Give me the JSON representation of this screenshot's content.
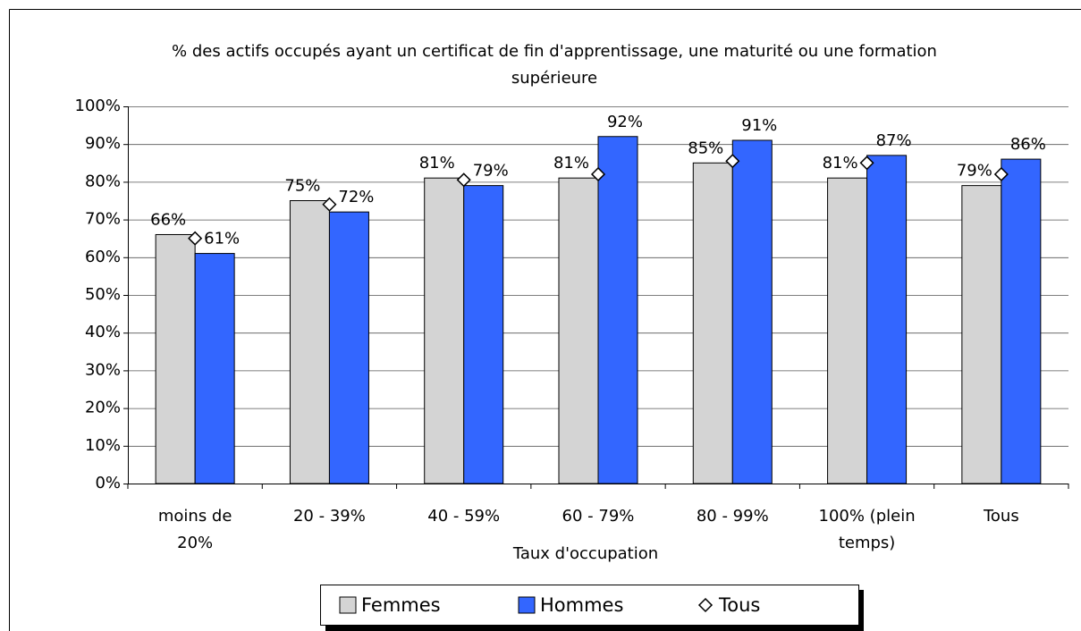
{
  "chart_data": {
    "type": "bar",
    "title": "% des actifs occupés ayant un certificat de fin d'apprentissage, une maturité ou une formation supérieure",
    "x_label": "Taux d'occupation",
    "categories": [
      "moins de 20%",
      "20 - 39%",
      "40 - 59%",
      "60 - 79%",
      "80 - 99%",
      "100% (plein temps)",
      "Tous"
    ],
    "series": [
      {
        "name": "Femmes",
        "color": "#d4d4d4",
        "values": [
          66,
          75,
          81,
          81,
          85,
          81,
          79
        ],
        "value_labels": [
          "66%",
          "75%",
          "81%",
          "81%",
          "85%",
          "81%",
          "79%"
        ]
      },
      {
        "name": "Hommes",
        "color": "#3366ff",
        "values": [
          61,
          72,
          79,
          92,
          91,
          87,
          86
        ],
        "value_labels": [
          "61%",
          "72%",
          "79%",
          "92%",
          "91%",
          "87%",
          "86%"
        ]
      },
      {
        "name": "Tous",
        "color": "#ffffff",
        "marker": "diamond",
        "values": [
          65,
          74,
          80.5,
          82,
          85.5,
          85,
          82
        ]
      }
    ],
    "ylim": [
      0,
      100
    ],
    "yticks": [
      {
        "value": 0,
        "label": "0%"
      },
      {
        "value": 10,
        "label": "10%"
      },
      {
        "value": 20,
        "label": "20%"
      },
      {
        "value": 30,
        "label": "30%"
      },
      {
        "value": 40,
        "label": "40%"
      },
      {
        "value": 50,
        "label": "50%"
      },
      {
        "value": 60,
        "label": "60%"
      },
      {
        "value": 70,
        "label": "70%"
      },
      {
        "value": 80,
        "label": "80%"
      },
      {
        "value": 90,
        "label": "90%"
      },
      {
        "value": 100,
        "label": "100%"
      }
    ],
    "grid": true,
    "legend": "bottom"
  }
}
